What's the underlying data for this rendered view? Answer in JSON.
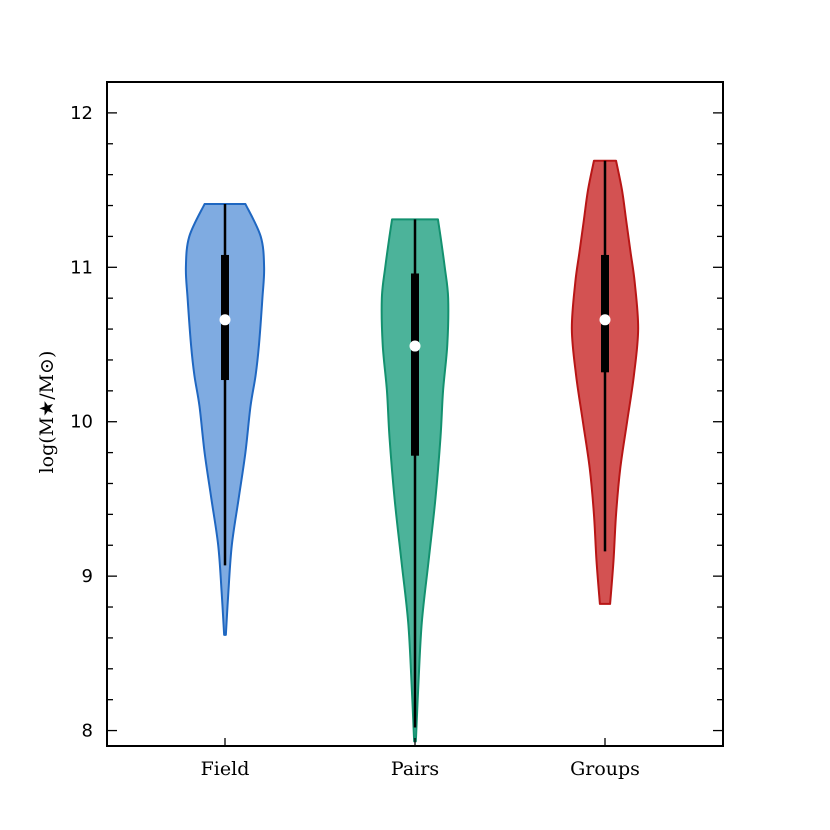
{
  "chart_data": {
    "type": "violin",
    "title": "",
    "xlabel": "",
    "ylabel": "log(M★/M⊙)",
    "ylim": [
      7.9,
      12.2
    ],
    "yticks": [
      8,
      9,
      10,
      11,
      12
    ],
    "grid": false,
    "categories": [
      "Field",
      "Pairs",
      "Groups"
    ],
    "series": [
      {
        "name": "Field",
        "fill": "#7fabe1",
        "edge": "#1f67c1",
        "min": 8.62,
        "max": 11.41,
        "median": 10.66,
        "q1": 10.27,
        "q3": 11.08,
        "whisker_low": 9.07,
        "whisker_high": 11.41,
        "density": [
          [
            8.62,
            0.01
          ],
          [
            8.9,
            0.04
          ],
          [
            9.2,
            0.08
          ],
          [
            9.5,
            0.16
          ],
          [
            9.8,
            0.24
          ],
          [
            10.1,
            0.3
          ],
          [
            10.3,
            0.36
          ],
          [
            10.5,
            0.4
          ],
          [
            10.8,
            0.44
          ],
          [
            11.0,
            0.46
          ],
          [
            11.2,
            0.42
          ],
          [
            11.41,
            0.24
          ]
        ]
      },
      {
        "name": "Pairs",
        "fill": "#4cb39a",
        "edge": "#13916f",
        "min": 7.93,
        "max": 11.31,
        "median": 10.49,
        "q1": 9.78,
        "q3": 10.96,
        "whisker_low": 8.02,
        "whisker_high": 11.31,
        "density": [
          [
            7.93,
            0.01
          ],
          [
            8.3,
            0.04
          ],
          [
            8.7,
            0.08
          ],
          [
            9.1,
            0.16
          ],
          [
            9.5,
            0.24
          ],
          [
            9.9,
            0.3
          ],
          [
            10.2,
            0.33
          ],
          [
            10.5,
            0.38
          ],
          [
            10.8,
            0.39
          ],
          [
            11.0,
            0.35
          ],
          [
            11.2,
            0.3
          ],
          [
            11.31,
            0.27
          ]
        ]
      },
      {
        "name": "Groups",
        "fill": "#d35252",
        "edge": "#b81616",
        "min": 8.82,
        "max": 11.69,
        "median": 10.66,
        "q1": 10.32,
        "q3": 11.08,
        "whisker_low": 9.16,
        "whisker_high": 11.69,
        "density": [
          [
            8.82,
            0.06
          ],
          [
            9.1,
            0.1
          ],
          [
            9.4,
            0.13
          ],
          [
            9.7,
            0.18
          ],
          [
            10.0,
            0.26
          ],
          [
            10.3,
            0.34
          ],
          [
            10.6,
            0.39
          ],
          [
            10.9,
            0.35
          ],
          [
            11.1,
            0.3
          ],
          [
            11.3,
            0.25
          ],
          [
            11.5,
            0.2
          ],
          [
            11.69,
            0.13
          ]
        ]
      }
    ]
  }
}
